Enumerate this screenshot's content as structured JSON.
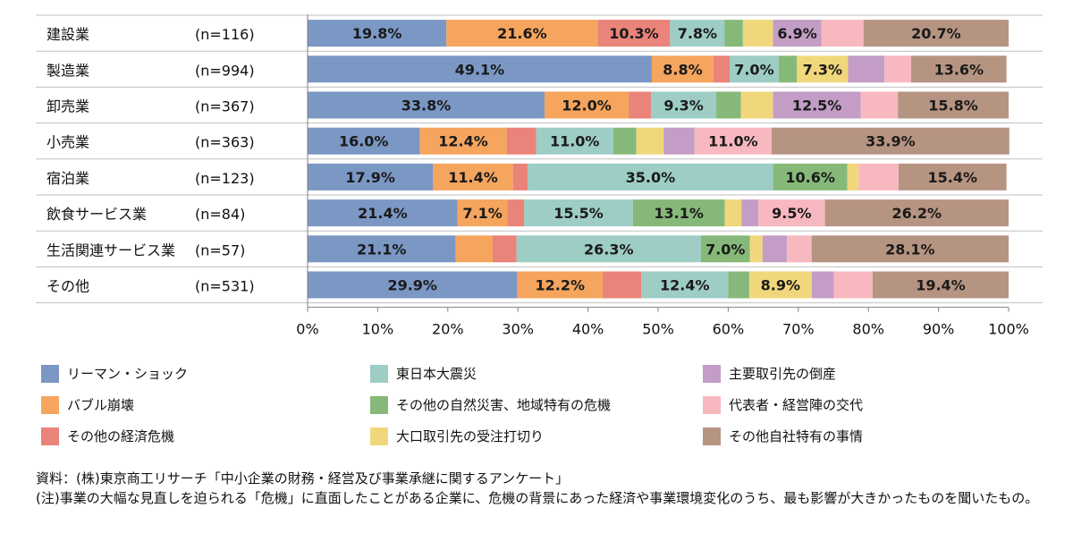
{
  "chart_data": {
    "type": "bar",
    "orientation": "horizontal",
    "stacked": true,
    "percent_stacked": true,
    "categories": [
      "建設業",
      "製造業",
      "卸売業",
      "小売業",
      "宿泊業",
      "飲食サービス業",
      "生活関連サービス業",
      "その他"
    ],
    "n_labels": [
      "(n=116)",
      "(n=994)",
      "(n=367)",
      "(n=363)",
      "(n=123)",
      "(n=84)",
      "(n=57)",
      "(n=531)"
    ],
    "series": [
      {
        "name": "リーマン・ショック",
        "color": "#7b97c4",
        "values": [
          19.8,
          49.1,
          33.8,
          16.0,
          17.9,
          21.4,
          21.1,
          29.9
        ],
        "labels": [
          "19.8%",
          "49.1%",
          "33.8%",
          "16.0%",
          "17.9%",
          "21.4%",
          "21.1%",
          "29.9%"
        ]
      },
      {
        "name": "バブル崩壊",
        "color": "#f5a55e",
        "values": [
          21.6,
          8.8,
          12.0,
          12.4,
          11.4,
          7.1,
          5.3,
          12.2
        ],
        "labels": [
          "21.6%",
          "8.8%",
          "12.0%",
          "12.4%",
          "11.4%",
          "7.1%",
          "",
          "12.2%"
        ]
      },
      {
        "name": "その他の経済危機",
        "color": "#ea8379",
        "values": [
          10.3,
          2.3,
          3.2,
          4.2,
          2.1,
          2.4,
          3.4,
          5.5
        ],
        "labels": [
          "10.3%",
          "",
          "",
          "",
          "",
          "",
          "",
          ""
        ]
      },
      {
        "name": "東日本大震災",
        "color": "#9dcdc4",
        "values": [
          7.8,
          7.0,
          9.3,
          11.0,
          35.0,
          15.5,
          26.3,
          12.4
        ],
        "labels": [
          "7.8%",
          "7.0%",
          "9.3%",
          "11.0%",
          "35.0%",
          "15.5%",
          "26.3%",
          "12.4%"
        ]
      },
      {
        "name": "その他の自然災害、地域特有の危機",
        "color": "#86b979",
        "values": [
          2.6,
          2.6,
          3.5,
          3.3,
          10.6,
          13.1,
          7.0,
          3.0
        ],
        "labels": [
          "",
          "",
          "",
          "",
          "10.6%",
          "13.1%",
          "7.0%",
          ""
        ]
      },
      {
        "name": "大口取引先の受注打切り",
        "color": "#f1d77c",
        "values": [
          4.3,
          7.3,
          4.6,
          3.9,
          1.6,
          2.4,
          1.8,
          8.9
        ],
        "labels": [
          "",
          "7.3%",
          "",
          "",
          "",
          "",
          "",
          "8.9%"
        ]
      },
      {
        "name": "主要取引先の倒産",
        "color": "#c39dc5",
        "values": [
          6.9,
          5.2,
          12.5,
          4.4,
          0.0,
          2.4,
          3.5,
          3.2
        ],
        "labels": [
          "6.9%",
          "",
          "12.5%",
          "",
          "",
          "",
          "",
          ""
        ]
      },
      {
        "name": "代表者・経営陣の交代",
        "color": "#f8b8bf",
        "values": [
          6.0,
          3.8,
          5.3,
          11.0,
          5.7,
          9.5,
          3.5,
          5.5
        ],
        "labels": [
          "",
          "",
          "",
          "11.0%",
          "",
          "9.5%",
          "",
          ""
        ]
      },
      {
        "name": "その他自社特有の事情",
        "color": "#b69482",
        "values": [
          20.7,
          13.6,
          15.8,
          33.9,
          15.4,
          26.2,
          28.1,
          19.4
        ],
        "labels": [
          "20.7%",
          "13.6%",
          "15.8%",
          "33.9%",
          "15.4%",
          "26.2%",
          "28.1%",
          "19.4%"
        ]
      }
    ],
    "x_ticks": [
      "0%",
      "10%",
      "20%",
      "30%",
      "40%",
      "50%",
      "60%",
      "70%",
      "80%",
      "90%",
      "100%"
    ],
    "xlim": [
      0,
      100
    ],
    "grid": false,
    "legend_position": "bottom"
  },
  "notes": {
    "source": "資料：(株)東京商工リサーチ「中小企業の財務・経営及び事業承継に関するアンケート」",
    "note": "(注)事業の大幅な見直しを迫られる「危機」に直面したことがある企業に、危機の背景にあった経済や事業環境変化のうち、最も影響が大きかったものを聞いたもの。"
  }
}
